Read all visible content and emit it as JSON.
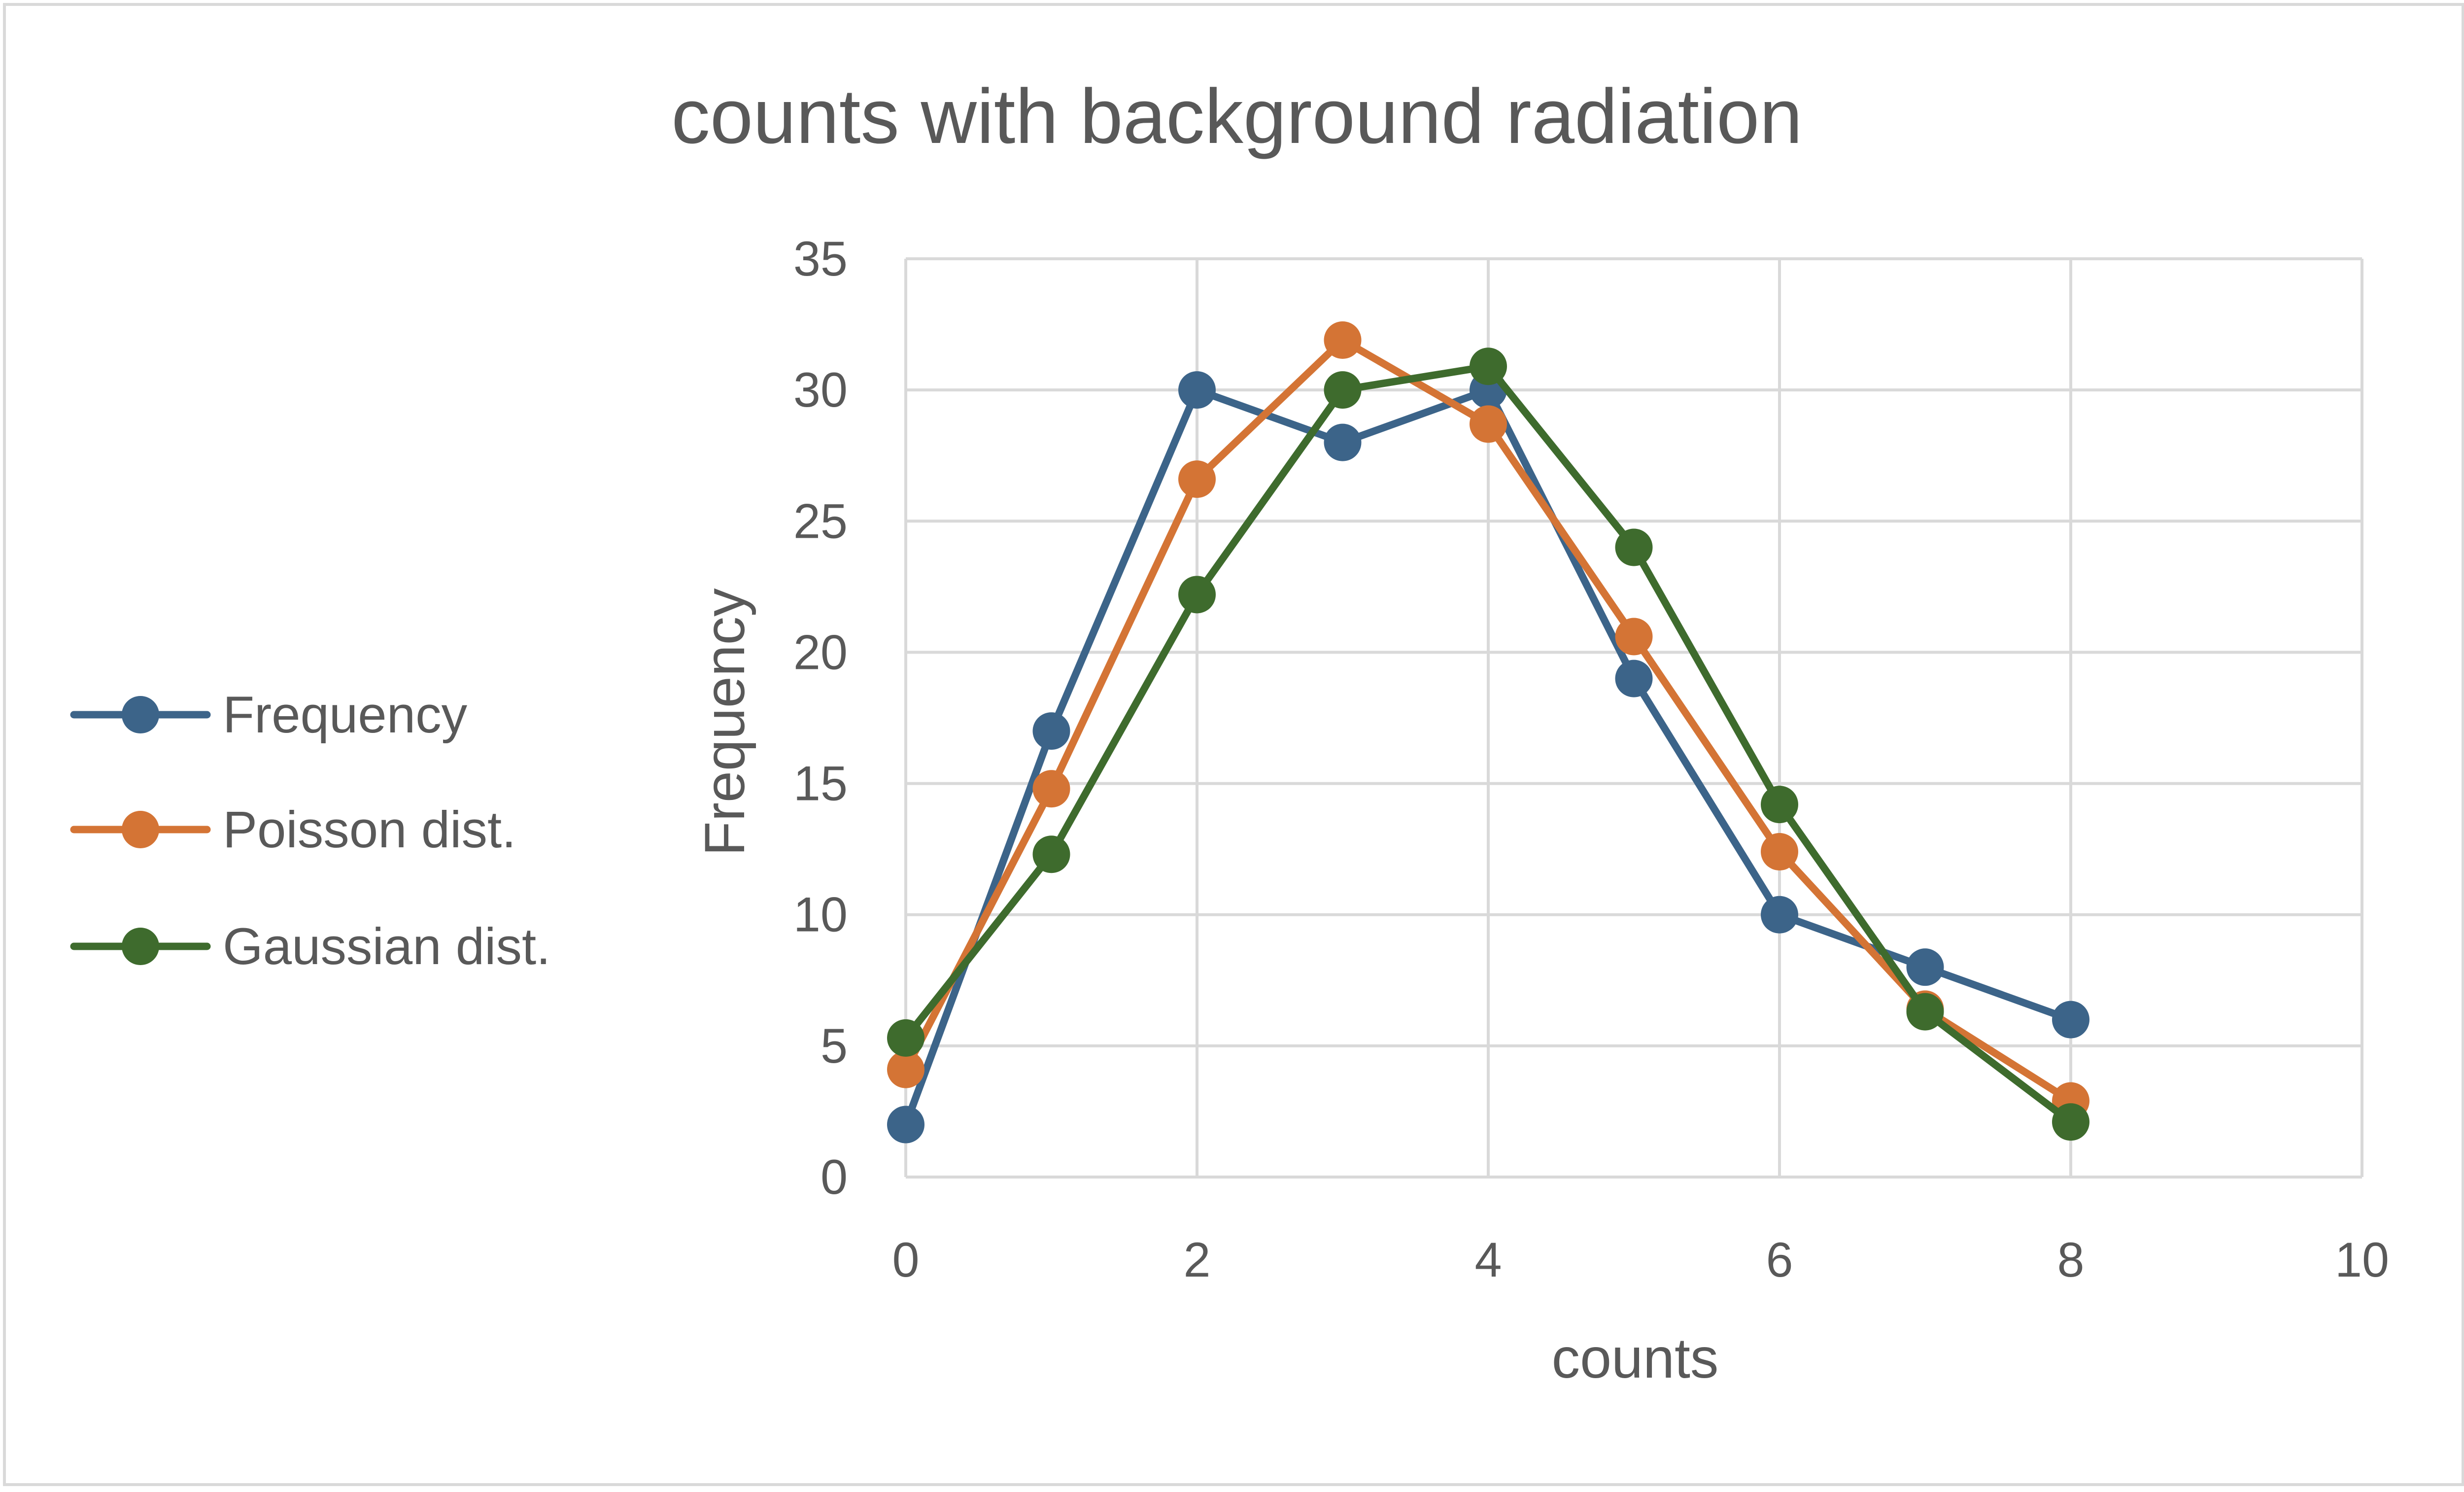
{
  "chart_data": {
    "type": "line",
    "title": "counts with background radiation",
    "xlabel": "counts",
    "ylabel": "Frequency",
    "xlim": [
      0,
      10
    ],
    "ylim": [
      0,
      35
    ],
    "xticks": [
      0,
      2,
      4,
      6,
      8,
      10
    ],
    "yticks": [
      0,
      5,
      10,
      15,
      20,
      25,
      30,
      35
    ],
    "grid": true,
    "legend_position": "left",
    "x": [
      0,
      1,
      2,
      3,
      4,
      5,
      6,
      7,
      8
    ],
    "series": [
      {
        "name": "Frequency",
        "color": "#3c6489",
        "marker": "circle",
        "values": [
          2,
          17,
          30,
          28,
          30,
          19,
          10,
          8,
          6
        ]
      },
      {
        "name": "Poisson dist.",
        "color": "#d47435",
        "marker": "circle",
        "values": [
          4.1,
          14.8,
          26.6,
          31.9,
          28.7,
          20.6,
          12.4,
          6.4,
          2.9
        ]
      },
      {
        "name": "Gaussian dist.",
        "color": "#3e6b2d",
        "marker": "circle",
        "values": [
          5.3,
          12.3,
          22.2,
          30.0,
          30.9,
          24.0,
          14.2,
          6.3,
          2.1
        ]
      }
    ]
  }
}
